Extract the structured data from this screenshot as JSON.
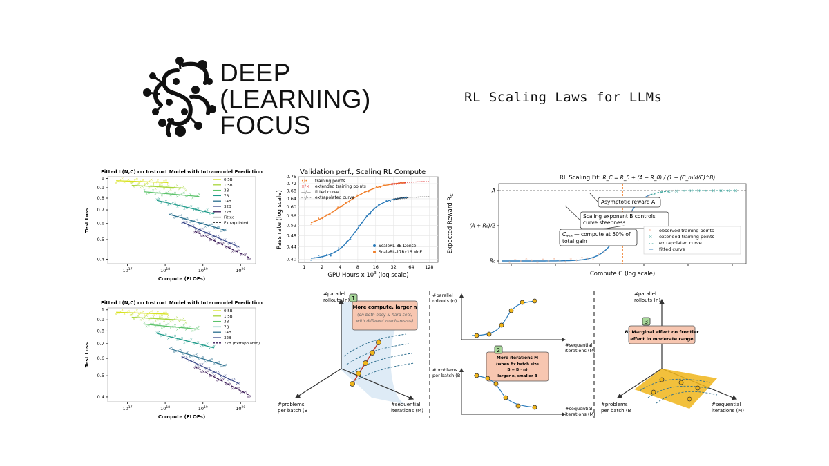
{
  "brand": {
    "line1": "DEEP",
    "line2": "(LEARNING)",
    "line3": "FOCUS",
    "headline": "RL Scaling Laws for LLMs"
  },
  "colors": {
    "size_palette": [
      "#d8e21f",
      "#a8d63a",
      "#5bc26a",
      "#1f9b8a",
      "#2a6f8e",
      "#3c4a8a",
      "#3b1a57"
    ],
    "blue": "#2b7bba",
    "orange": "#f07f2b",
    "red": "#e03030",
    "black": "#222222",
    "salmon": "#f2b9a0",
    "callout_fill": "#f7c6b0",
    "badge_fill": "#a8d89a",
    "gold": "#f0b51a",
    "teal": "#3aa39b"
  },
  "chart_data": [
    {
      "type": "scatter",
      "title": "Fitted L(N,C) on Instruct Model with Intra-model Prediction",
      "xlabel": "Compute (FLOPs)",
      "ylabel": "Test Loss",
      "xscale": "log",
      "yscale": "log",
      "xlim": [
        3e+16,
        2.5e+20
      ],
      "ylim": [
        0.38,
        1.02
      ],
      "x_ticks": [
        {
          "v": 1e+17,
          "label": "10",
          "exp": "17"
        },
        {
          "v": 1e+18,
          "label": "10",
          "exp": "18"
        },
        {
          "v": 1e+19,
          "label": "10",
          "exp": "19"
        },
        {
          "v": 1e+20,
          "label": "10",
          "exp": "20"
        }
      ],
      "y_ticks": [
        {
          "v": 0.4,
          "label": "0.4"
        },
        {
          "v": 0.5,
          "label": "0.5"
        },
        {
          "v": 0.6,
          "label": "0.6"
        },
        {
          "v": 0.7,
          "label": "0.7"
        },
        {
          "v": 0.8,
          "label": "0.8"
        },
        {
          "v": 0.9,
          "label": "0.9"
        },
        {
          "v": 1.0,
          "label": "1"
        }
      ],
      "legend": {
        "placement": "top-right",
        "entries": [
          "0.5B",
          "1.5B",
          "3B",
          "7B",
          "14B",
          "32B",
          "72B",
          "Fitted",
          "Extrapolated"
        ]
      },
      "series": [
        {
          "name": "0.5B",
          "x_start": 5e+16,
          "x_end": 1.2e+18,
          "y_start": 0.975,
          "y_end": 0.955,
          "extrapolated": false
        },
        {
          "name": "1.5B",
          "x_start": 1.3e+17,
          "x_end": 3.5e+18,
          "y_start": 0.925,
          "y_end": 0.895,
          "extrapolated": false
        },
        {
          "name": "3B",
          "x_start": 2.8e+17,
          "x_end": 8e+18,
          "y_start": 0.86,
          "y_end": 0.815,
          "extrapolated": false
        },
        {
          "name": "7B",
          "x_start": 6e+17,
          "x_end": 2e+19,
          "y_start": 0.78,
          "y_end": 0.67,
          "extrapolated": false
        },
        {
          "name": "14B",
          "x_start": 1.3e+18,
          "x_end": 4e+19,
          "y_start": 0.665,
          "y_end": 0.555,
          "extrapolated": false
        },
        {
          "name": "32B",
          "x_start": 2.8e+18,
          "x_end": 9e+19,
          "y_start": 0.61,
          "y_end": 0.46,
          "extrapolated": false
        },
        {
          "name": "72B",
          "x_start": 6e+18,
          "x_end": 1.8e+20,
          "y_start": 0.55,
          "y_end": 0.405,
          "extrapolated": true
        }
      ]
    },
    {
      "type": "scatter",
      "title": "Fitted L(N,C) on Instruct Model with Inter-model Prediction",
      "xlabel": "Compute (FLOPs)",
      "ylabel": "Test Loss",
      "xscale": "log",
      "yscale": "log",
      "xlim": [
        3e+16,
        2.5e+20
      ],
      "ylim": [
        0.38,
        1.02
      ],
      "x_ticks": [
        {
          "v": 1e+17,
          "label": "10",
          "exp": "17"
        },
        {
          "v": 1e+18,
          "label": "10",
          "exp": "18"
        },
        {
          "v": 1e+19,
          "label": "10",
          "exp": "19"
        },
        {
          "v": 1e+20,
          "label": "10",
          "exp": "20"
        }
      ],
      "y_ticks": [
        {
          "v": 0.4,
          "label": "0.4"
        },
        {
          "v": 0.5,
          "label": "0.5"
        },
        {
          "v": 0.6,
          "label": "0.6"
        },
        {
          "v": 0.7,
          "label": "0.7"
        },
        {
          "v": 0.8,
          "label": "0.8"
        },
        {
          "v": 0.9,
          "label": "0.9"
        },
        {
          "v": 1.0,
          "label": "1"
        }
      ],
      "legend": {
        "placement": "top-right",
        "entries": [
          "0.5B",
          "1.5B",
          "3B",
          "7B",
          "14B",
          "32B",
          "72B (Extrapolated)"
        ]
      },
      "series": [
        {
          "name": "0.5B",
          "x_start": 5e+16,
          "x_end": 1.2e+18,
          "y_start": 0.975,
          "y_end": 0.955,
          "extrapolated": false
        },
        {
          "name": "1.5B",
          "x_start": 1.3e+17,
          "x_end": 3.5e+18,
          "y_start": 0.925,
          "y_end": 0.895,
          "extrapolated": false
        },
        {
          "name": "3B",
          "x_start": 2.8e+17,
          "x_end": 8e+18,
          "y_start": 0.86,
          "y_end": 0.815,
          "extrapolated": false
        },
        {
          "name": "7B",
          "x_start": 6e+17,
          "x_end": 2e+19,
          "y_start": 0.78,
          "y_end": 0.67,
          "extrapolated": false
        },
        {
          "name": "14B",
          "x_start": 1.3e+18,
          "x_end": 4e+19,
          "y_start": 0.665,
          "y_end": 0.555,
          "extrapolated": false
        },
        {
          "name": "32B",
          "x_start": 2.8e+18,
          "x_end": 9e+19,
          "y_start": 0.61,
          "y_end": 0.46,
          "extrapolated": false
        },
        {
          "name": "72B (Extrapolated)",
          "x_start": 6e+18,
          "x_end": 1.8e+20,
          "y_start": 0.55,
          "y_end": 0.405,
          "extrapolated": true
        }
      ]
    },
    {
      "type": "line",
      "title": "Validation perf., Scaling RL Compute",
      "xlabel": "GPU Hours x 10",
      "xlabel_exp": "3",
      "xlabel_suffix": " (log scale)",
      "ylabel": "Pass rate (log scale)",
      "xscale": "log",
      "yscale": "log",
      "xlim": [
        0.8,
        180
      ],
      "ylim": [
        0.39,
        0.76
      ],
      "x_ticks": [
        1,
        2,
        4,
        8,
        16,
        32,
        64,
        128
      ],
      "y_ticks": [
        0.4,
        0.44,
        0.48,
        0.52,
        0.56,
        0.6,
        0.64,
        0.68,
        0.72,
        0.76
      ],
      "legend_top": {
        "placement": "top-left",
        "entries": [
          {
            "sym": "•/•",
            "label": "training points"
          },
          {
            "sym": "×/×",
            "label": "extended training points"
          },
          {
            "sym": "—/—",
            "label": "fitted curve"
          },
          {
            "sym": "- -/- -",
            "label": "extrapolated curve"
          }
        ]
      },
      "legend_bottom": {
        "placement": "bottom-right",
        "entries": [
          "ScaleRL-8B Dense",
          "ScaleRL-17Bx16 MoE"
        ]
      },
      "series": [
        {
          "name": "ScaleRL-8B Dense",
          "A": 0.65,
          "R0": 0.4,
          "Cmid": 9,
          "B": 2.3,
          "x_min": 1.3,
          "x_fit_end": 55,
          "x_extrap_end": 130
        },
        {
          "name": "ScaleRL-17Bx16 MoE",
          "A": 0.735,
          "R0": 0.5,
          "Cmid": 5,
          "B": 1.4,
          "x_min": 1.3,
          "x_fit_end": 50,
          "x_extrap_end": 130
        }
      ]
    },
    {
      "type": "line",
      "title": "RL Scaling Fit: ",
      "title_formula": "R_C = R_0 + (A − R_0) / (1 + (C_mid/C)^B)",
      "xlabel": "Compute  C  (log scale)",
      "ylabel": "Expected Reward  R",
      "ylabel_sub": "C",
      "y_ticks": [
        {
          "v": 0,
          "label": "R"
        },
        {
          "v": 0.5,
          "label": "(A + R"
        },
        {
          "v": 1,
          "label": "A"
        }
      ],
      "y_tick_labels": [
        "R0",
        "(A + R0)/2",
        "A"
      ],
      "annotations": [
        "Asymptotic reward A",
        "Scaling exponent B controls",
        "curve steepness",
        "C",
        "mid",
        " — compute at 50% of",
        "total gain"
      ],
      "legend": {
        "placement": "lower-right",
        "entries": [
          "observed training points",
          "extended training points",
          "extrapolated curve",
          "fitted curve"
        ]
      },
      "curve": {
        "B": 1.6,
        "xlog_mid": 0.35,
        "xlog_min": -2.9,
        "xlog_max": 3.4
      },
      "observed_xlog": [
        -2.7,
        -2.55,
        -2.4,
        -2.25,
        -2.1,
        -1.95,
        -1.8,
        -1.65,
        -1.5,
        -1.35,
        -1.2,
        -1.05,
        -0.9,
        -0.75,
        -0.6,
        -0.45,
        -0.3,
        -0.15,
        0.0,
        0.15,
        0.3,
        0.45,
        0.6,
        0.75,
        0.9,
        1.05
      ],
      "extended_xlog": [
        1.2,
        1.4,
        1.6,
        1.8,
        2.0,
        2.2,
        2.4,
        2.6,
        2.8,
        3.0,
        3.2,
        3.4
      ]
    }
  ],
  "diagram": {
    "axis_parallel": [
      "#parallel",
      "rollouts (n)"
    ],
    "axis_problems": [
      "#problems",
      "per batch (B"
    ],
    "axis_problems_sub": "p",
    "axis_sequential": [
      "#sequential",
      "iterations (M)"
    ],
    "box1": {
      "badge": "1",
      "line1": "More compute, larger n",
      "line2": "(on both easy & hard sets,",
      "line3": "with different mechanisms)"
    },
    "box2": {
      "badge": "2",
      "line1": "More iterations M",
      "line2": "(when fix batch size",
      "line3": "B = B  · n)",
      "line4": "larger n, smaller B"
    },
    "box3": {
      "badge": "3",
      "line1": ": Marginal effect on frontier",
      "line1_prefix": "B",
      "line2": "effect in moderate range"
    },
    "mini_top": {
      "ylabel": [
        "#parallel",
        "rollouts (n)"
      ],
      "xlabel": [
        "#sequential",
        "iterations (M)"
      ]
    },
    "mini_bottom": {
      "ylabel": [
        "#problems",
        "per batch (B"
      ],
      "xlabel": [
        "#sequential",
        "iterations (M)"
      ]
    }
  }
}
